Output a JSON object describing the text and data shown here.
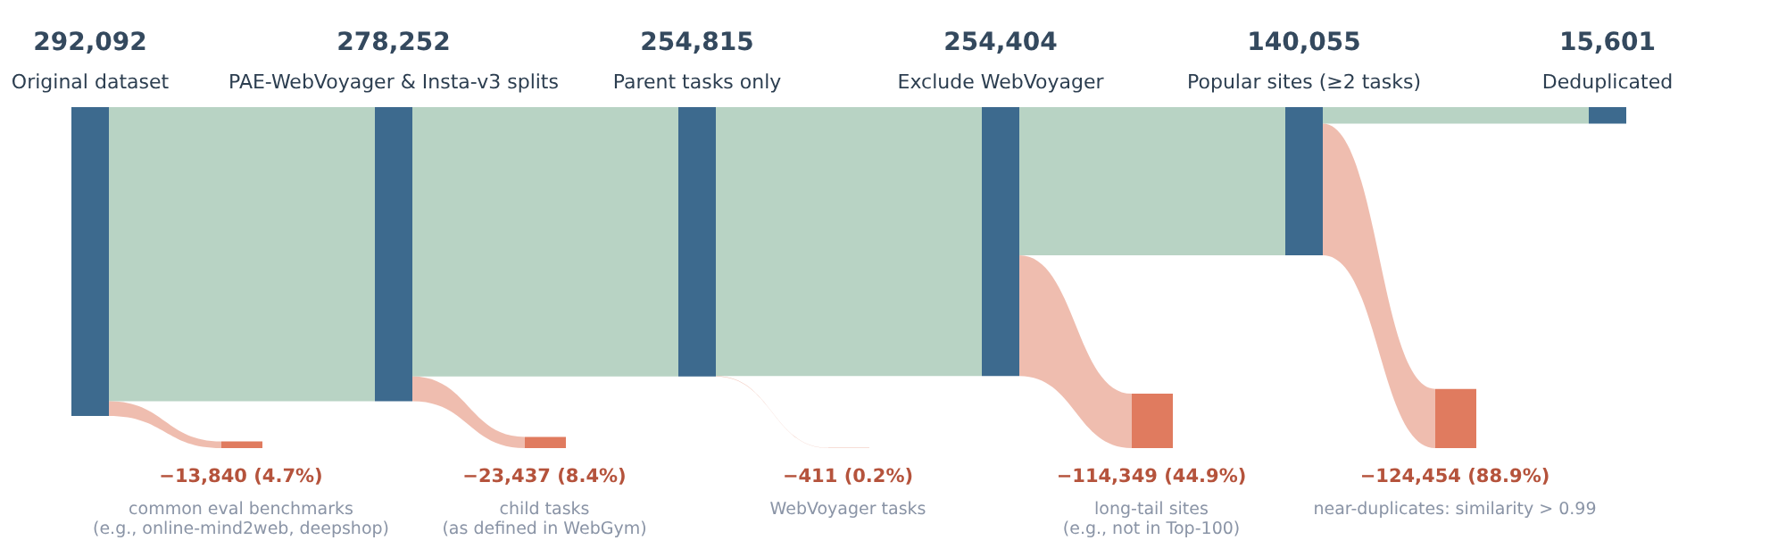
{
  "chart_data": {
    "type": "other",
    "categories": [
      "Original dataset",
      "PAE-WebVoyager & Insta-v3 splits",
      "Parent tasks only",
      "Exclude WebVoyager",
      "Popular sites (≥2 tasks)",
      "Deduplicated"
    ],
    "series": [
      {
        "color": "#3d6a8e",
        "values": [
          292092,
          278252,
          254815,
          254404,
          140055,
          15601
        ],
        "value_labels": [
          "292,092",
          "278,252",
          "254,815",
          "254,404",
          "140,055",
          "15,601"
        ]
      },
      {
        "color": "#e07b5f",
        "values": [
          -13840,
          -23437,
          -411,
          -114349,
          -124454,
          null
        ],
        "value_labels": [
          "−13,840  (4.7%)",
          "−23,437  (8.4%)",
          "−411  (0.2%)",
          "−114,349  (44.9%)",
          "−124,454  (88.9%)",
          null
        ]
      }
    ],
    "annotations": [
      "common eval benchmarks\n(e.g., online-mind2web, deepshop)",
      "child tasks\n(as defined in WebGym)",
      "WebVoyager tasks",
      "long-tail sites\n(e.g., not in Top-100)",
      "near-duplicates: similarity > 0.99"
    ]
  }
}
